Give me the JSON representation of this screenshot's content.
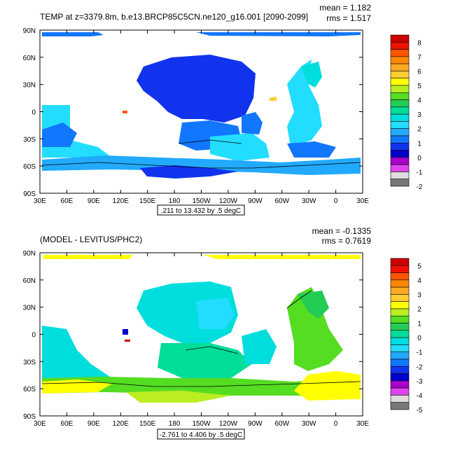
{
  "chart_data": [
    {
      "type": "heatmap",
      "title": "TEMP at z=3379.8m, b.e13.BRCP85C5CN.ne120_g16.001 [2090-2099]",
      "mean_label": "mean = 1.182",
      "rms_label": "rms = 1.517",
      "range_label": ".211 to 13.432 by .5 degC",
      "x_ticks": [
        "30E",
        "60E",
        "90E",
        "120E",
        "150E",
        "180",
        "150W",
        "120W",
        "90W",
        "60W",
        "30W",
        "0",
        "30E"
      ],
      "y_ticks": [
        "90N",
        "60N",
        "30N",
        "0",
        "30S",
        "60S",
        "90S"
      ],
      "colorbar_labels": [
        "8",
        "7",
        "6",
        "5",
        "4",
        "3",
        "2",
        "1",
        "0",
        "-1",
        "-2"
      ],
      "colorbar_colors": [
        "#cc0000",
        "#ee1100",
        "#ff5500",
        "#ff8800",
        "#ffaa22",
        "#ffcc33",
        "#ffff00",
        "#bbee22",
        "#55dd22",
        "#22cc55",
        "#00dd99",
        "#00dddd",
        "#22ddff",
        "#22aaff",
        "#1177ff",
        "#1133ee",
        "#0000cc",
        "#aa00cc",
        "#dd44ee",
        "#dddddd",
        "#777777"
      ]
    },
    {
      "type": "heatmap",
      "title": "(MODEL - LEVITUS/PHC2)",
      "mean_label": "mean = -0.1335",
      "rms_label": "rms = 0.7619",
      "range_label": "-2.761 to 4.406 by .5 degC",
      "x_ticks": [
        "30E",
        "60E",
        "90E",
        "120E",
        "150E",
        "180",
        "150W",
        "120W",
        "90W",
        "60W",
        "30W",
        "0",
        "30E"
      ],
      "y_ticks": [
        "90N",
        "60N",
        "30N",
        "0",
        "30S",
        "60S",
        "90S"
      ],
      "colorbar_labels": [
        "5",
        "4",
        "3",
        "2",
        "1",
        "0",
        "-1",
        "-2",
        "-3",
        "-4",
        "-5"
      ],
      "colorbar_colors": [
        "#cc0000",
        "#ee1100",
        "#ff5500",
        "#ff8800",
        "#ffaa22",
        "#ffcc33",
        "#ffff00",
        "#bbee22",
        "#55dd22",
        "#22cc55",
        "#00dd99",
        "#00dddd",
        "#22ddff",
        "#22aaff",
        "#1177ff",
        "#1133ee",
        "#0000cc",
        "#aa00cc",
        "#dd44ee",
        "#dddddd",
        "#777777"
      ]
    }
  ]
}
